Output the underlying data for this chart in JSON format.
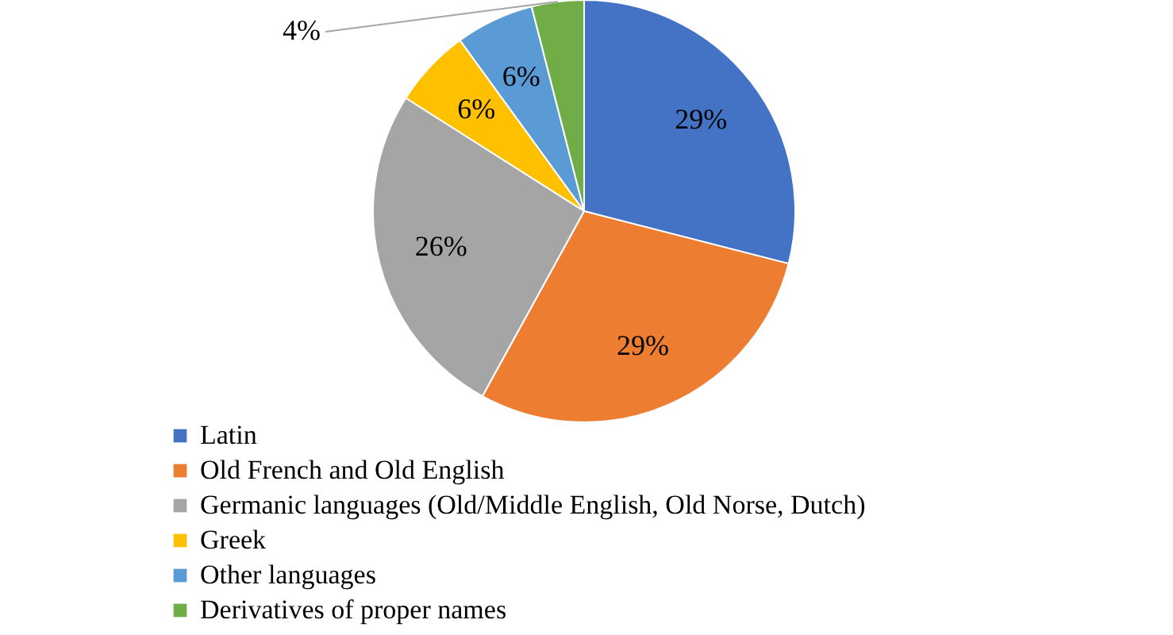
{
  "chart_data": {
    "type": "pie",
    "categories": [
      "Latin",
      "Old French and Old English",
      "Germanic languages (Old/Middle English, Old Norse, Dutch)",
      "Greek",
      "Other languages",
      "Derivatives of proper names"
    ],
    "values": [
      29,
      29,
      26,
      6,
      6,
      4
    ],
    "colors": [
      "#4472c4",
      "#ed7d31",
      "#a5a5a5",
      "#ffc000",
      "#5b9bd5",
      "#70ad47"
    ],
    "value_labels": [
      "29%",
      "29%",
      "26%",
      "6%",
      "6%",
      "4%"
    ],
    "legend": "bottom left"
  }
}
